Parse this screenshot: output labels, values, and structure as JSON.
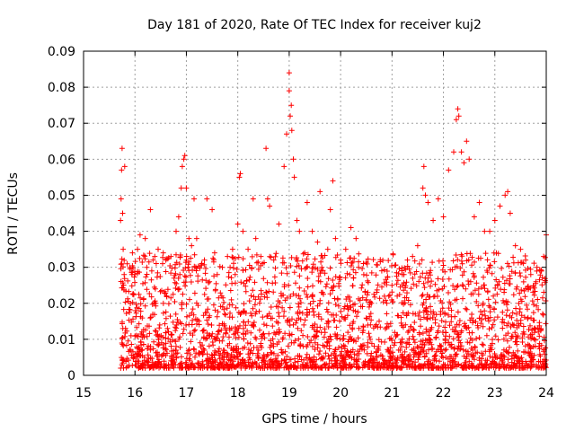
{
  "chart_data": {
    "type": "scatter",
    "title": "Day 181 of 2020, Rate Of TEC Index for receiver kuj2",
    "xlabel": "GPS time / hours",
    "ylabel": "ROTI / TECUs",
    "xlim": [
      15,
      24
    ],
    "ylim": [
      0,
      0.09
    ],
    "xticks": [
      "15",
      "16",
      "17",
      "18",
      "19",
      "20",
      "21",
      "22",
      "23",
      "24"
    ],
    "yticks": [
      "0",
      "0.01",
      "0.02",
      "0.03",
      "0.04",
      "0.05",
      "0.06",
      "0.07",
      "0.08",
      "0.09"
    ],
    "grid": true,
    "marker": "+",
    "color": "#ff0000",
    "series": [
      {
        "name": "ROTI",
        "x": [
          15.72,
          15.73,
          15.74,
          15.75,
          15.76,
          15.77,
          15.79,
          15.8,
          15.85,
          15.9,
          15.95,
          16.0,
          16.05,
          16.1,
          16.2,
          16.3,
          16.35,
          16.45,
          16.55,
          16.6,
          16.7,
          16.8,
          16.85,
          16.9,
          16.92,
          16.95,
          16.97,
          17.0,
          17.05,
          17.1,
          17.15,
          17.2,
          17.3,
          17.35,
          17.4,
          17.5,
          17.55,
          17.6,
          17.7,
          17.8,
          17.85,
          17.9,
          17.95,
          18.0,
          18.03,
          18.05,
          18.1,
          18.2,
          18.3,
          18.35,
          18.45,
          18.55,
          18.58,
          18.62,
          18.7,
          18.8,
          18.9,
          18.95,
          19.0,
          19.0,
          19.02,
          19.04,
          19.05,
          19.08,
          19.1,
          19.15,
          19.2,
          19.3,
          19.35,
          19.45,
          19.55,
          19.6,
          19.75,
          19.8,
          19.85,
          19.9,
          20.0,
          20.1,
          20.2,
          20.3,
          20.35,
          20.5,
          20.6,
          20.75,
          20.9,
          21.0,
          21.1,
          21.2,
          21.3,
          21.4,
          21.5,
          21.6,
          21.62,
          21.65,
          21.7,
          21.8,
          21.9,
          22.0,
          22.1,
          22.2,
          22.25,
          22.28,
          22.3,
          22.35,
          22.4,
          22.45,
          22.5,
          22.6,
          22.7,
          22.8,
          22.9,
          23.0,
          23.1,
          23.2,
          23.25,
          23.3,
          23.4,
          23.5,
          23.6,
          23.7,
          23.8,
          23.9,
          23.95,
          24.0
        ],
        "y": [
          0.043,
          0.049,
          0.057,
          0.063,
          0.045,
          0.035,
          0.028,
          0.058,
          0.031,
          0.03,
          0.034,
          0.028,
          0.035,
          0.039,
          0.038,
          0.046,
          0.032,
          0.035,
          0.034,
          0.032,
          0.033,
          0.04,
          0.044,
          0.052,
          0.058,
          0.06,
          0.061,
          0.052,
          0.038,
          0.036,
          0.049,
          0.038,
          0.031,
          0.032,
          0.049,
          0.046,
          0.034,
          0.028,
          0.03,
          0.033,
          0.03,
          0.035,
          0.028,
          0.042,
          0.055,
          0.056,
          0.04,
          0.035,
          0.049,
          0.038,
          0.033,
          0.063,
          0.049,
          0.047,
          0.032,
          0.042,
          0.058,
          0.067,
          0.079,
          0.084,
          0.072,
          0.075,
          0.068,
          0.06,
          0.055,
          0.043,
          0.04,
          0.034,
          0.048,
          0.04,
          0.037,
          0.051,
          0.035,
          0.046,
          0.054,
          0.038,
          0.032,
          0.035,
          0.041,
          0.038,
          0.03,
          0.021,
          0.02,
          0.015,
          0.02,
          0.025,
          0.022,
          0.028,
          0.032,
          0.033,
          0.036,
          0.052,
          0.058,
          0.05,
          0.048,
          0.043,
          0.049,
          0.044,
          0.057,
          0.062,
          0.071,
          0.074,
          0.072,
          0.062,
          0.059,
          0.065,
          0.06,
          0.044,
          0.048,
          0.04,
          0.04,
          0.043,
          0.047,
          0.05,
          0.051,
          0.045,
          0.036,
          0.035,
          0.032,
          0.028,
          0.026,
          0.029,
          0.033,
          0.039
        ]
      }
    ],
    "baseline_band_note": "Dense cloud of points between 0.002 and about 0.03 TECUs spanning hours 15.7 to 24"
  }
}
